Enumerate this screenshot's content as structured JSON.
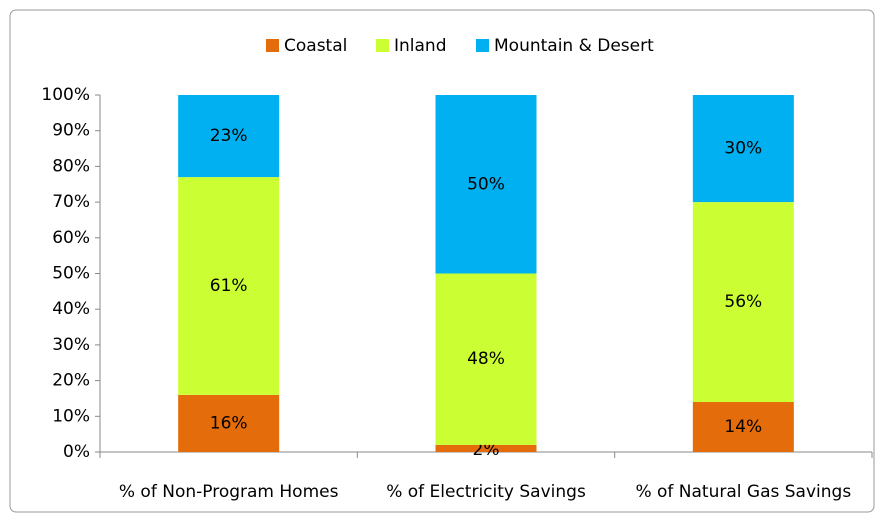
{
  "chart_data": {
    "type": "stacked_bar",
    "categories": [
      "% of Non-Program Homes",
      "% of Electricity Savings",
      "% of Natural Gas Savings"
    ],
    "series": [
      {
        "name": "Coastal",
        "color": "#e46c0a",
        "values": [
          16,
          2,
          14
        ],
        "value_labels": [
          "16%",
          "2%",
          "14%"
        ]
      },
      {
        "name": "Inland",
        "color": "#ccff33",
        "values": [
          61,
          48,
          56
        ],
        "value_labels": [
          "61%",
          "48%",
          "56%"
        ]
      },
      {
        "name": "Mountain & Desert",
        "color": "#00b0f0",
        "values": [
          23,
          50,
          30
        ],
        "value_labels": [
          "23%",
          "50%",
          "30%"
        ]
      }
    ],
    "ylim": [
      0,
      100
    ],
    "yticks": [
      {
        "value": 0,
        "label": "0%"
      },
      {
        "value": 10,
        "label": "10%"
      },
      {
        "value": 20,
        "label": "20%"
      },
      {
        "value": 30,
        "label": "30%"
      },
      {
        "value": 40,
        "label": "40%"
      },
      {
        "value": 50,
        "label": "50%"
      },
      {
        "value": 60,
        "label": "60%"
      },
      {
        "value": 70,
        "label": "70%"
      },
      {
        "value": 80,
        "label": "80%"
      },
      {
        "value": 90,
        "label": "90%"
      },
      {
        "value": 100,
        "label": "100%"
      }
    ],
    "grid": false,
    "legend": "top"
  }
}
